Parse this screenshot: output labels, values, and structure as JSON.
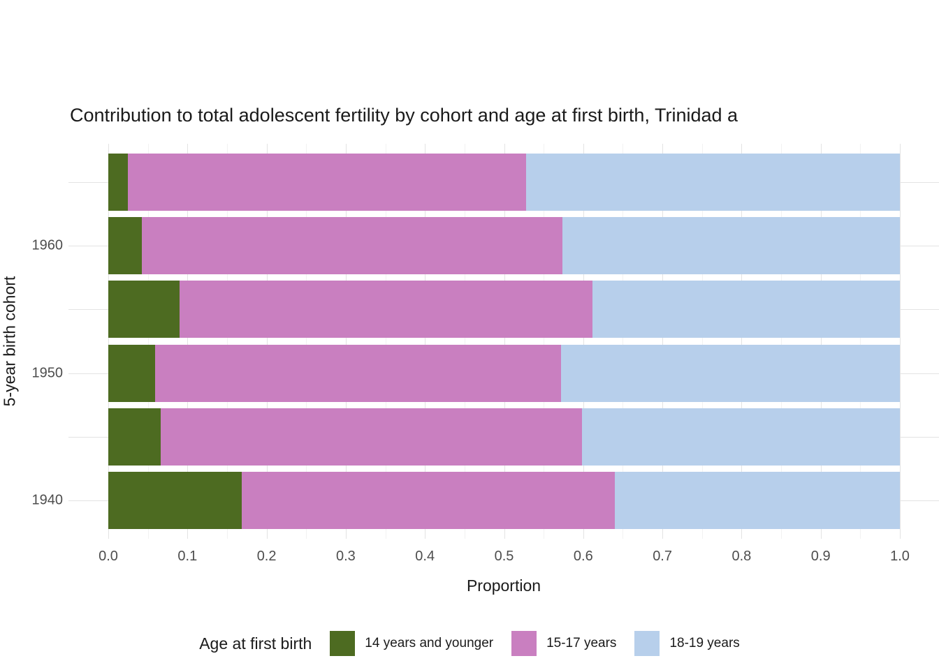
{
  "title": "Contribution to total adolescent fertility by cohort and age at first birth,  Trinidad a",
  "axes": {
    "x_label": "Proportion",
    "y_label": "5-year birth cohort"
  },
  "legend": {
    "title": "Age at first birth",
    "items": [
      "14 years and younger",
      "15-17 years",
      "18-19 years"
    ]
  },
  "colors": {
    "series": [
      "#4d6b21",
      "#c97fc0",
      "#b7cfeb"
    ],
    "grid_major": "#e3e3e3",
    "grid_minor": "#f2f2f2",
    "title_text": "#1a1a1a",
    "tick_text": "#4d4d4d"
  },
  "chart_data": {
    "type": "bar",
    "orientation": "horizontal",
    "stacked": true,
    "title": "Contribution to total adolescent fertility by cohort and age at first birth,  Trinidad a",
    "xlabel": "Proportion",
    "ylabel": "5-year birth cohort",
    "legend_title": "Age at first birth",
    "legend_position": "bottom",
    "grid": true,
    "xlim": [
      0,
      1
    ],
    "categories_top_to_bottom": [
      "",
      "1960",
      "",
      "1950",
      "",
      "1940"
    ],
    "series": [
      {
        "name": "14 years and younger",
        "color": "#4d6b21",
        "values": [
          0.025,
          0.042,
          0.09,
          0.059,
          0.066,
          0.169
        ]
      },
      {
        "name": "15-17 years",
        "color": "#c97fc0",
        "values": [
          0.503,
          0.532,
          0.522,
          0.513,
          0.532,
          0.471
        ]
      },
      {
        "name": "18-19 years",
        "color": "#b7cfeb",
        "values": [
          0.472,
          0.426,
          0.388,
          0.428,
          0.402,
          0.36
        ]
      }
    ],
    "x_ticks": [
      0.0,
      0.1,
      0.2,
      0.3,
      0.4,
      0.5,
      0.6,
      0.7,
      0.8,
      0.9,
      1.0
    ],
    "x_tick_labels": [
      "0.0",
      "0.1",
      "0.2",
      "0.3",
      "0.4",
      "0.5",
      "0.6",
      "0.7",
      "0.8",
      "0.9",
      "1.0"
    ]
  }
}
